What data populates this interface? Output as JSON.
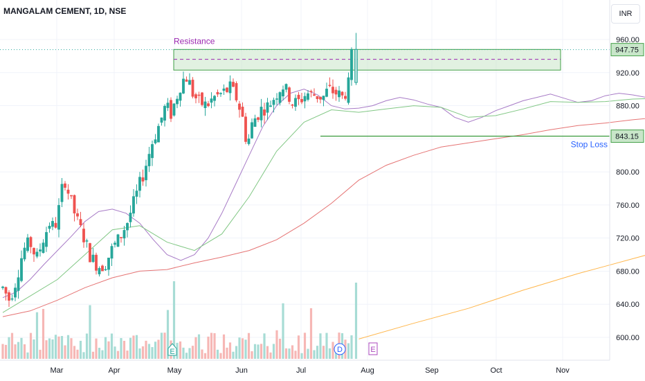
{
  "title": "MANGALAM CEMENT, 1D, NSE",
  "currency_button": "INR",
  "colors": {
    "up": "#26a69a",
    "down": "#ef5350",
    "up_fill": "#b2dfdb",
    "resistance_fill": "#c8e6c9",
    "resistance_border": "#43a047",
    "dashed_line": "#9c27b0",
    "stoploss_line": "#43a047",
    "ma_fast": "#a77ac6",
    "ma_mid": "#81c784",
    "ma_slow": "#e57373",
    "ma_long": "#ffb74d",
    "annotation_resistance": "#9c27b0",
    "annotation_stoploss": "#2962ff",
    "badge_earnings": "#ab47bc",
    "badge_dividend": "#2962ff",
    "badge_e_past": "#26a69a"
  },
  "chart_data": {
    "type": "candlestick",
    "x_axis_ticks": [
      "Mar",
      "Apr",
      "May",
      "Jun",
      "Jul",
      "Aug",
      "Sep",
      "Oct",
      "Nov"
    ],
    "y_axis_ticks": [
      960.0,
      920.0,
      880.0,
      840.0,
      800.0,
      760.0,
      720.0,
      680.0,
      640.0,
      600.0
    ],
    "y_range": [
      585,
      975
    ],
    "price_labels": {
      "current": "947.75",
      "stop_loss": "843.15"
    },
    "annotations": {
      "resistance_label": "Resistance",
      "stop_loss_label": "Stop Loss"
    },
    "resistance_zone": {
      "low": 923,
      "high": 948,
      "mid": 936
    },
    "stop_loss_level": 843.15,
    "event_badges": [
      {
        "label": "E",
        "position": "early May"
      },
      {
        "label": "D",
        "position": "late Jul"
      },
      {
        "label": "E",
        "position": "early Aug"
      }
    ],
    "moving_averages": {
      "ma_fast": [
        [
          0,
          648
        ],
        [
          10,
          655
        ],
        [
          20,
          670
        ],
        [
          30,
          688
        ],
        [
          40,
          705
        ],
        [
          50,
          722
        ],
        [
          60,
          740
        ],
        [
          70,
          752
        ],
        [
          80,
          755
        ],
        [
          90,
          750
        ],
        [
          100,
          738
        ],
        [
          110,
          718
        ],
        [
          120,
          700
        ],
        [
          130,
          693
        ],
        [
          140,
          700
        ],
        [
          150,
          720
        ],
        [
          160,
          750
        ],
        [
          170,
          785
        ],
        [
          180,
          820
        ],
        [
          190,
          855
        ],
        [
          200,
          880
        ],
        [
          210,
          895
        ],
        [
          220,
          900
        ],
        [
          230,
          893
        ],
        [
          240,
          880
        ],
        [
          250,
          876
        ],
        [
          260,
          877
        ],
        [
          270,
          880
        ],
        [
          280,
          886
        ],
        [
          290,
          890
        ],
        [
          300,
          887
        ],
        [
          310,
          882
        ],
        [
          320,
          878
        ],
        [
          330,
          866
        ],
        [
          340,
          860
        ],
        [
          350,
          866
        ],
        [
          360,
          874
        ],
        [
          370,
          880
        ],
        [
          380,
          886
        ],
        [
          390,
          890
        ],
        [
          400,
          894
        ],
        [
          410,
          889
        ],
        [
          420,
          884
        ],
        [
          430,
          886
        ],
        [
          440,
          892
        ],
        [
          450,
          895
        ],
        [
          460,
          893
        ],
        [
          470,
          890
        ],
        [
          480,
          892
        ],
        [
          490,
          897
        ],
        [
          500,
          903
        ],
        [
          510,
          910
        ]
      ],
      "ma_mid": [
        [
          0,
          630
        ],
        [
          20,
          650
        ],
        [
          40,
          670
        ],
        [
          60,
          700
        ],
        [
          80,
          730
        ],
        [
          100,
          735
        ],
        [
          120,
          715
        ],
        [
          140,
          705
        ],
        [
          160,
          725
        ],
        [
          180,
          770
        ],
        [
          200,
          825
        ],
        [
          220,
          860
        ],
        [
          240,
          875
        ],
        [
          260,
          872
        ],
        [
          280,
          876
        ],
        [
          300,
          880
        ],
        [
          320,
          878
        ],
        [
          340,
          866
        ],
        [
          360,
          868
        ],
        [
          380,
          876
        ],
        [
          400,
          885
        ],
        [
          420,
          884
        ],
        [
          440,
          885
        ],
        [
          460,
          888
        ],
        [
          480,
          889
        ],
        [
          500,
          895
        ],
        [
          510,
          902
        ]
      ],
      "ma_slow": [
        [
          0,
          625
        ],
        [
          20,
          632
        ],
        [
          40,
          645
        ],
        [
          60,
          660
        ],
        [
          80,
          672
        ],
        [
          100,
          680
        ],
        [
          120,
          682
        ],
        [
          140,
          690
        ],
        [
          160,
          697
        ],
        [
          180,
          705
        ],
        [
          200,
          718
        ],
        [
          220,
          738
        ],
        [
          240,
          762
        ],
        [
          260,
          790
        ],
        [
          280,
          808
        ],
        [
          300,
          820
        ],
        [
          320,
          830
        ],
        [
          340,
          835
        ],
        [
          360,
          840
        ],
        [
          380,
          845
        ],
        [
          400,
          851
        ],
        [
          420,
          856
        ],
        [
          440,
          859
        ],
        [
          460,
          863
        ],
        [
          480,
          866
        ],
        [
          500,
          871
        ],
        [
          510,
          874
        ]
      ],
      "ma_long": [
        [
          260,
          598
        ],
        [
          300,
          617
        ],
        [
          340,
          635
        ],
        [
          360,
          646
        ],
        [
          380,
          657
        ],
        [
          400,
          667
        ],
        [
          420,
          677
        ],
        [
          440,
          686
        ],
        [
          460,
          695
        ],
        [
          480,
          704
        ],
        [
          500,
          712
        ],
        [
          510,
          716
        ]
      ]
    }
  }
}
